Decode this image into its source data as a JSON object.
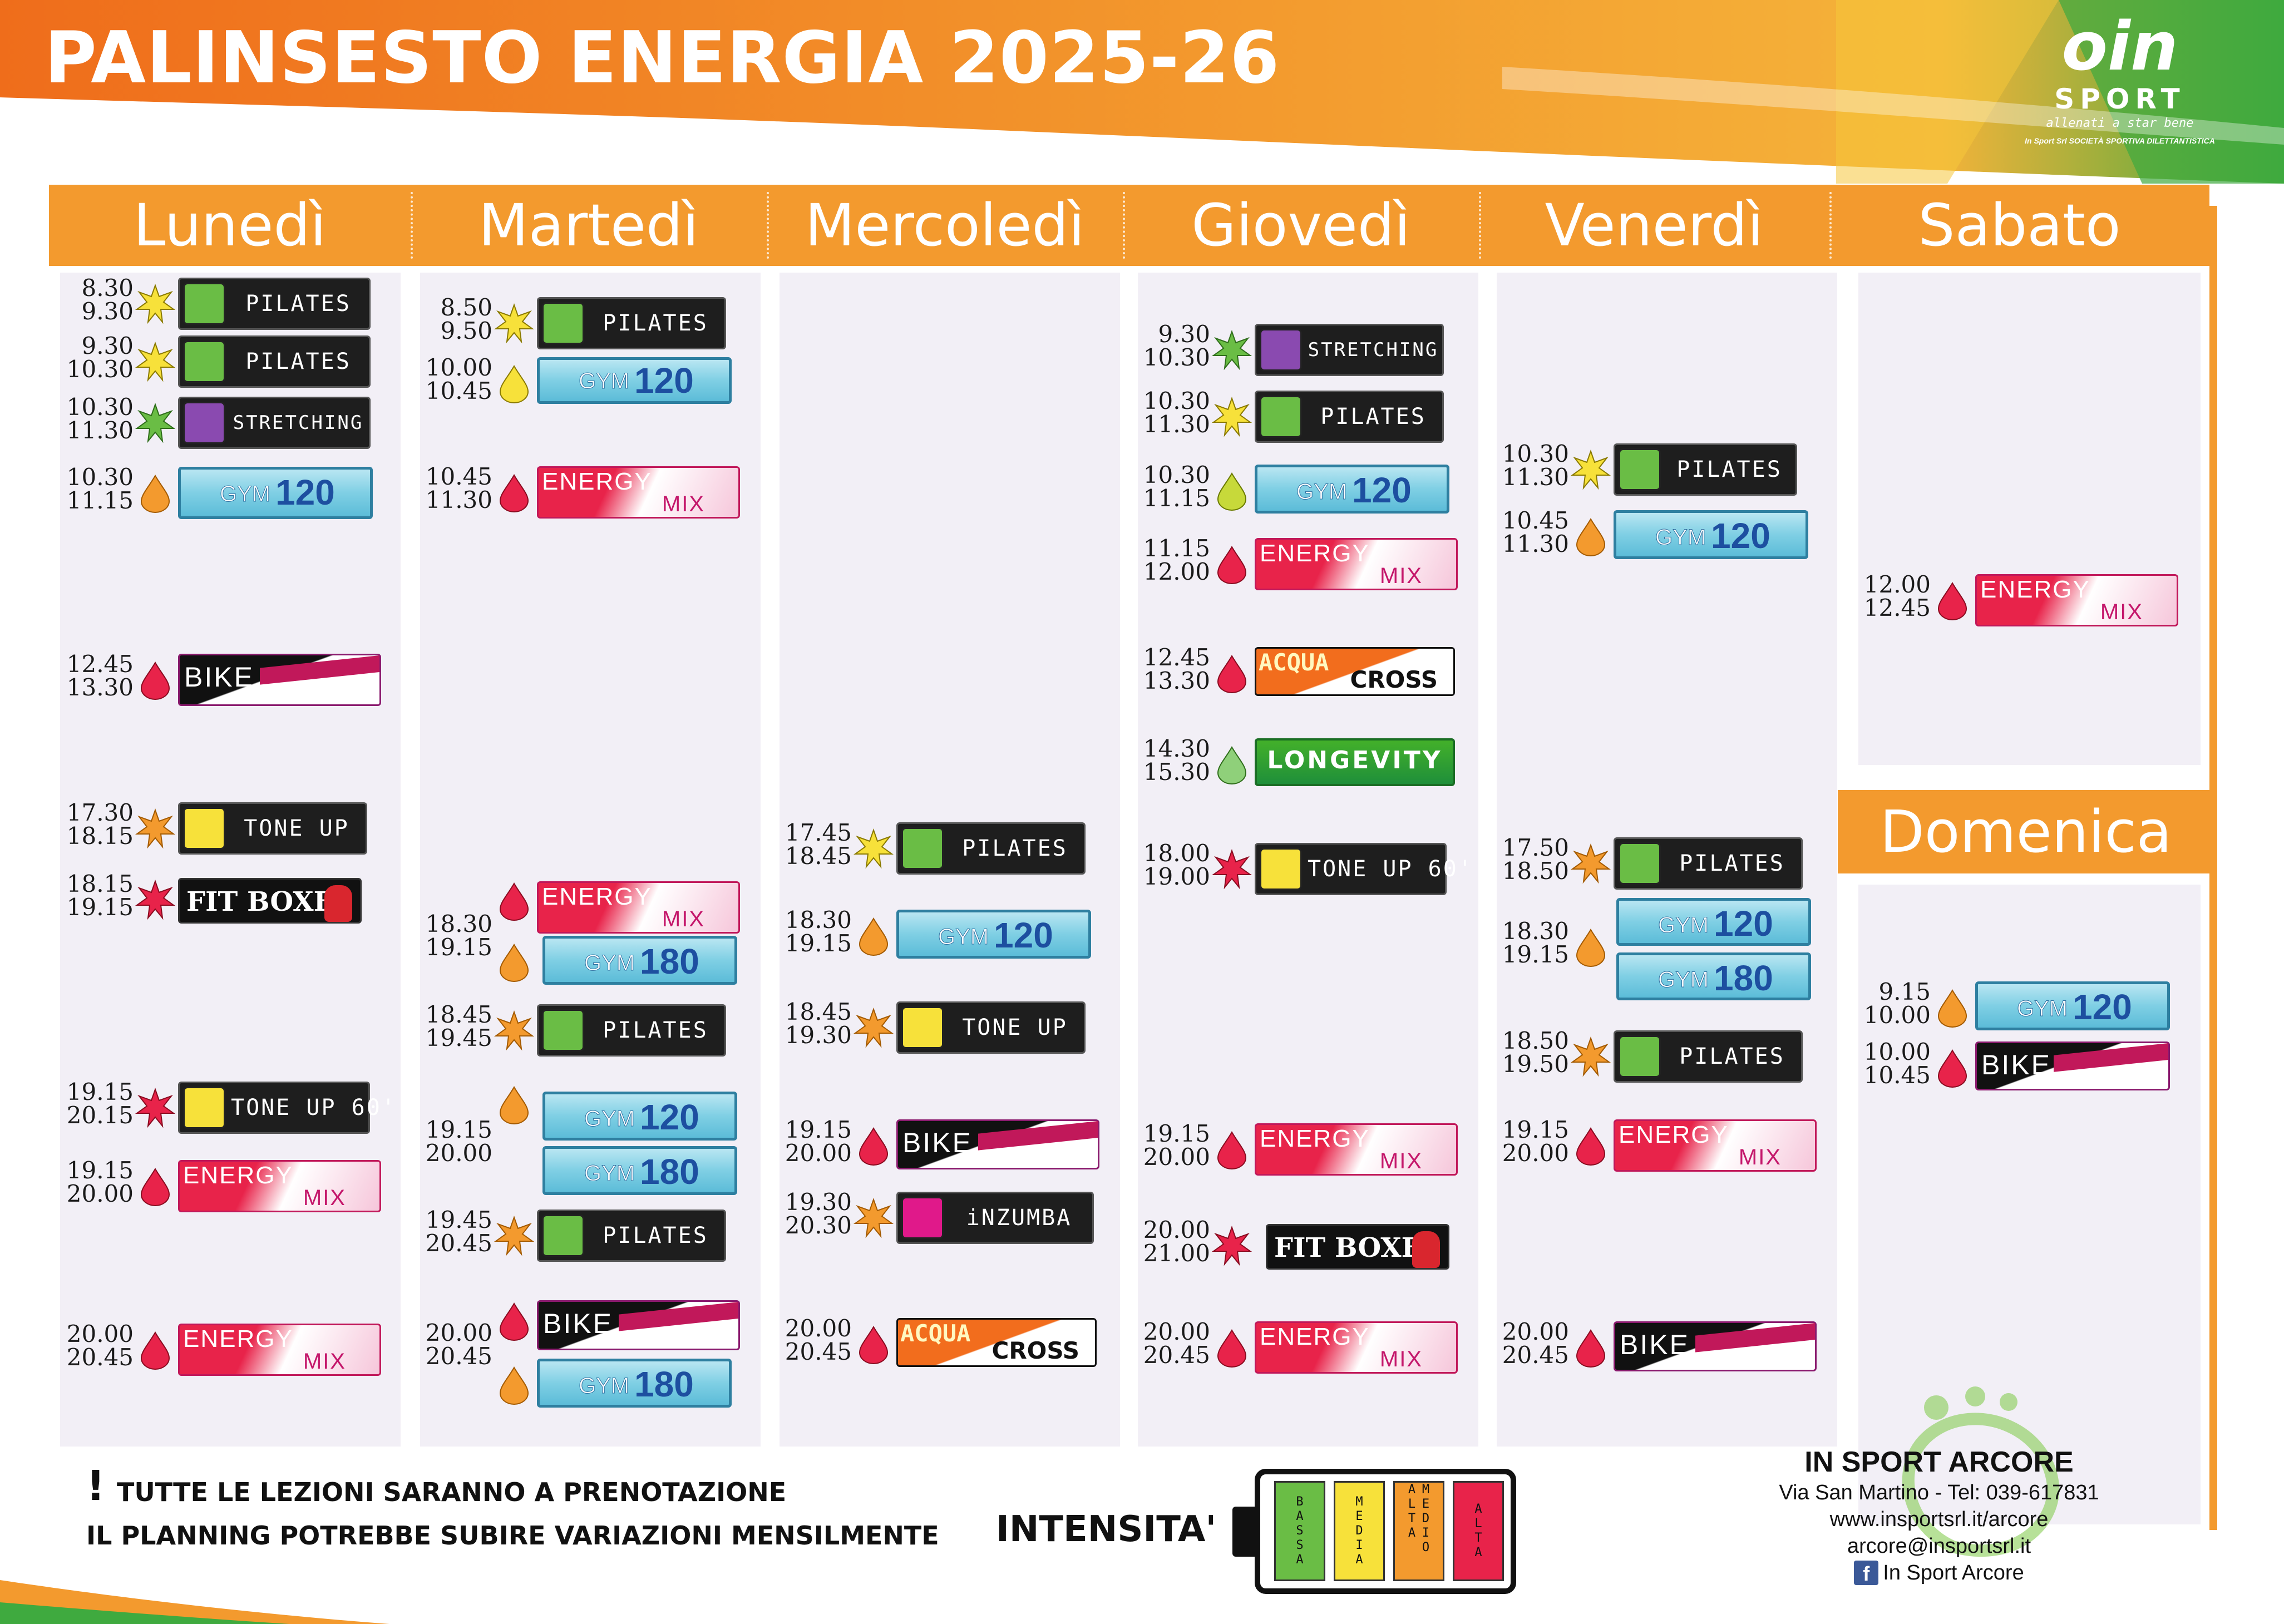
{
  "title": "PALINSESTO ENERGIA 2025-26",
  "logo": {
    "mark": "oin",
    "sport": "SPORT",
    "tagline": "allenati a star bene",
    "subline": "In Sport Srl SOCIETÀ SPORTIVA DILETTANTISTICA"
  },
  "days": [
    "Lunedì",
    "Martedì",
    "Mercoledì",
    "Giovedì",
    "Venerdì",
    "Sabato"
  ],
  "sunday": "Domenica",
  "colors": {
    "orange": "#f39a2e",
    "column_bg": "#f2eff6",
    "intensity_bassa": "#6abd45",
    "intensity_media": "#f7e13a",
    "intensity_medio_alta": "#f39a2e",
    "intensity_alta": "#e8234a"
  },
  "schedule": {
    "monday": [
      {
        "start": "8.30",
        "end": "9.30",
        "class": "PILATES",
        "intensity": "media"
      },
      {
        "start": "9.30",
        "end": "10.30",
        "class": "PILATES",
        "intensity": "media"
      },
      {
        "start": "10.30",
        "end": "11.30",
        "class": "STRETCHING",
        "intensity": "bassa"
      },
      {
        "start": "10.30",
        "end": "11.15",
        "class": "GYM 120",
        "intensity": "medio-alta"
      },
      {
        "start": "12.45",
        "end": "13.30",
        "class": "BIKE",
        "intensity": "alta"
      },
      {
        "start": "17.30",
        "end": "18.15",
        "class": "TONE UP",
        "intensity": "medio-alta"
      },
      {
        "start": "18.15",
        "end": "19.15",
        "class": "FIT BOXE",
        "intensity": "alta"
      },
      {
        "start": "19.15",
        "end": "20.15",
        "class": "TONE UP 60'",
        "intensity": "alta"
      },
      {
        "start": "19.15",
        "end": "20.00",
        "class": "ENERGY MIX",
        "intensity": "alta"
      },
      {
        "start": "20.00",
        "end": "20.45",
        "class": "ENERGY MIX",
        "intensity": "alta"
      }
    ],
    "tuesday": [
      {
        "start": "8.50",
        "end": "9.50",
        "class": "PILATES",
        "intensity": "media"
      },
      {
        "start": "10.00",
        "end": "10.45",
        "class": "GYM 120",
        "intensity": "media"
      },
      {
        "start": "10.45",
        "end": "11.30",
        "class": "ENERGY MIX",
        "intensity": "alta"
      },
      {
        "start": "18.30",
        "end": "19.15",
        "class": "ENERGY MIX",
        "intensity": "alta"
      },
      {
        "start": "18.30",
        "end": "19.15",
        "class": "GYM 180",
        "intensity": "medio-alta"
      },
      {
        "start": "18.45",
        "end": "19.45",
        "class": "PILATES",
        "intensity": "medio-alta"
      },
      {
        "start": "19.15",
        "end": "20.00",
        "class": "GYM 120",
        "intensity": "medio-alta"
      },
      {
        "start": "19.15",
        "end": "20.00",
        "class": "GYM 180",
        "intensity": "medio-alta"
      },
      {
        "start": "19.45",
        "end": "20.45",
        "class": "PILATES",
        "intensity": "medio-alta"
      },
      {
        "start": "20.00",
        "end": "20.45",
        "class": "BIKE",
        "intensity": "alta"
      },
      {
        "start": "20.00",
        "end": "20.45",
        "class": "GYM 180",
        "intensity": "medio-alta"
      }
    ],
    "wednesday": [
      {
        "start": "17.45",
        "end": "18.45",
        "class": "PILATES",
        "intensity": "media"
      },
      {
        "start": "18.30",
        "end": "19.15",
        "class": "GYM 120",
        "intensity": "medio-alta"
      },
      {
        "start": "18.45",
        "end": "19.30",
        "class": "TONE UP",
        "intensity": "medio-alta"
      },
      {
        "start": "19.15",
        "end": "20.00",
        "class": "BIKE",
        "intensity": "alta"
      },
      {
        "start": "19.30",
        "end": "20.30",
        "class": "iNZUMBA",
        "intensity": "medio-alta"
      },
      {
        "start": "20.00",
        "end": "20.45",
        "class": "ACQUA CROSS",
        "intensity": "alta"
      }
    ],
    "thursday": [
      {
        "start": "9.30",
        "end": "10.30",
        "class": "STRETCHING",
        "intensity": "bassa"
      },
      {
        "start": "10.30",
        "end": "11.30",
        "class": "PILATES",
        "intensity": "media"
      },
      {
        "start": "10.30",
        "end": "11.15",
        "class": "GYM 120",
        "intensity": "media"
      },
      {
        "start": "11.15",
        "end": "12.00",
        "class": "ENERGY MIX",
        "intensity": "alta"
      },
      {
        "start": "12.45",
        "end": "13.30",
        "class": "ACQUA CROSS",
        "intensity": "alta"
      },
      {
        "start": "14.30",
        "end": "15.30",
        "class": "LONGEVITY",
        "intensity": "bassa"
      },
      {
        "start": "18.00",
        "end": "19.00",
        "class": "TONE UP 60'",
        "intensity": "alta"
      },
      {
        "start": "19.15",
        "end": "20.00",
        "class": "ENERGY MIX",
        "intensity": "alta"
      },
      {
        "start": "20.00",
        "end": "21.00",
        "class": "FIT BOXE",
        "intensity": "alta"
      },
      {
        "start": "20.00",
        "end": "20.45",
        "class": "ENERGY MIX",
        "intensity": "alta"
      }
    ],
    "friday": [
      {
        "start": "10.30",
        "end": "11.30",
        "class": "PILATES",
        "intensity": "media"
      },
      {
        "start": "10.45",
        "end": "11.30",
        "class": "GYM 120",
        "intensity": "medio-alta"
      },
      {
        "start": "17.50",
        "end": "18.50",
        "class": "PILATES",
        "intensity": "medio-alta"
      },
      {
        "start": "18.30",
        "end": "19.15",
        "class": "GYM 120",
        "intensity": "medio-alta"
      },
      {
        "start": "",
        "end": "",
        "class": "GYM 180",
        "intensity": ""
      },
      {
        "start": "18.50",
        "end": "19.50",
        "class": "PILATES",
        "intensity": "medio-alta"
      },
      {
        "start": "19.15",
        "end": "20.00",
        "class": "ENERGY MIX",
        "intensity": "alta"
      },
      {
        "start": "20.00",
        "end": "20.45",
        "class": "BIKE",
        "intensity": "alta"
      }
    ],
    "saturday": [
      {
        "start": "12.00",
        "end": "12.45",
        "class": "ENERGY MIX",
        "intensity": "alta"
      }
    ],
    "sunday": [
      {
        "start": "9.15",
        "end": "10.00",
        "class": "GYM 120",
        "intensity": "medio-alta"
      },
      {
        "start": "10.00",
        "end": "10.45",
        "class": "BIKE",
        "intensity": "alta"
      }
    ]
  },
  "notes": {
    "bang": "!",
    "line1": "TUTTE LE LEZIONI SARANNO A PRENOTAZIONE",
    "line2": "IL PLANNING POTREBBE SUBIRE VARIAZIONI MENSILMENTE"
  },
  "intensity_legend": {
    "label": "INTENSITA'",
    "levels": [
      "BASSA",
      "MEDIA",
      "MEDIO ALTA",
      "ALTA"
    ]
  },
  "contacts": {
    "name": "IN SPORT ARCORE",
    "address": "Via San Martino - Tel: 039-617831",
    "website": "www.insportsrl.it/arcore",
    "email": "arcore@insportsrl.it",
    "facebook": "In Sport Arcore"
  }
}
